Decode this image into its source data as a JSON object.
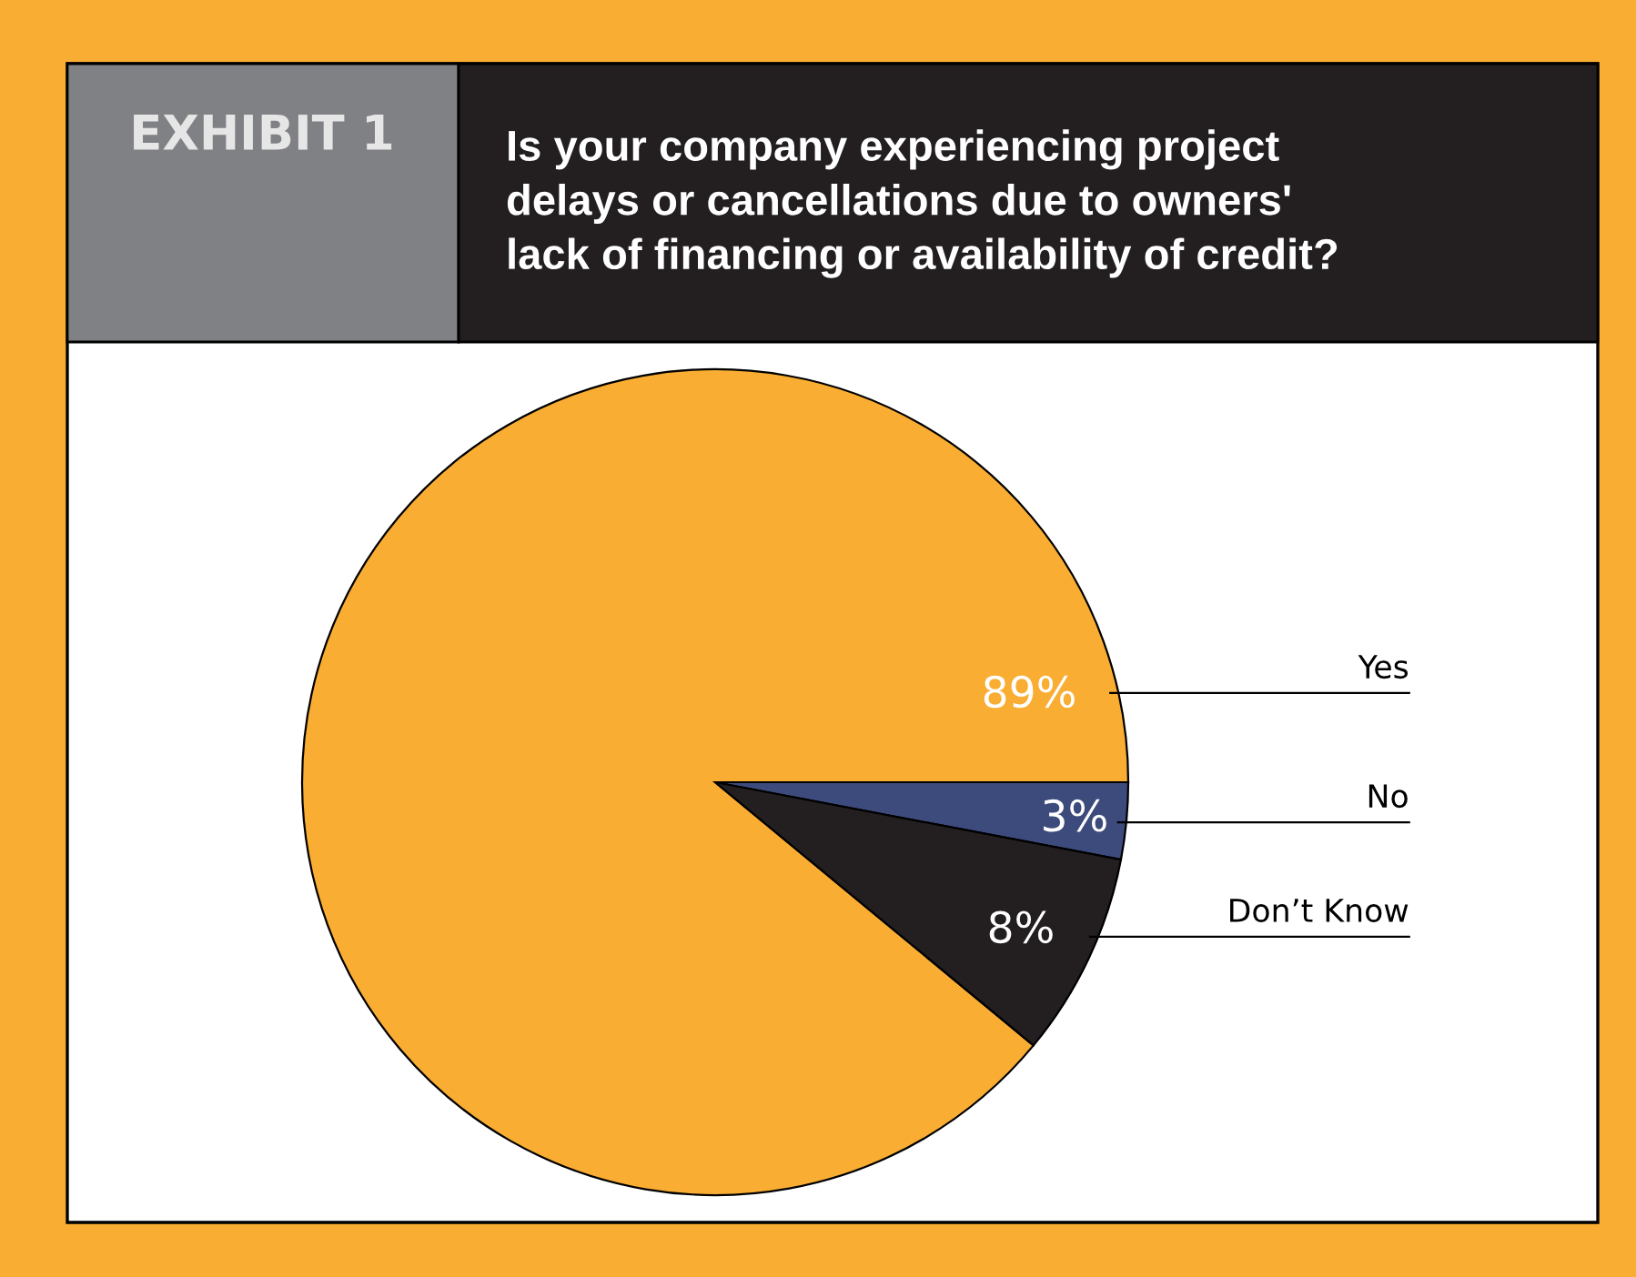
{
  "chart_data": {
    "type": "pie",
    "title": "EXHIBIT 1",
    "subtitle": "Is your company experiencing project\ndelays or cancellations due to owners'\nlack of financing or availability of credit?",
    "categories": [
      "Yes",
      "No",
      "Don’t Know"
    ],
    "values": [
      89,
      3,
      8
    ],
    "colors": [
      "#f9ad33",
      "#3d4a7c",
      "#231f20"
    ],
    "value_labels": [
      "89%",
      "3%",
      "8%"
    ],
    "legend": false
  }
}
